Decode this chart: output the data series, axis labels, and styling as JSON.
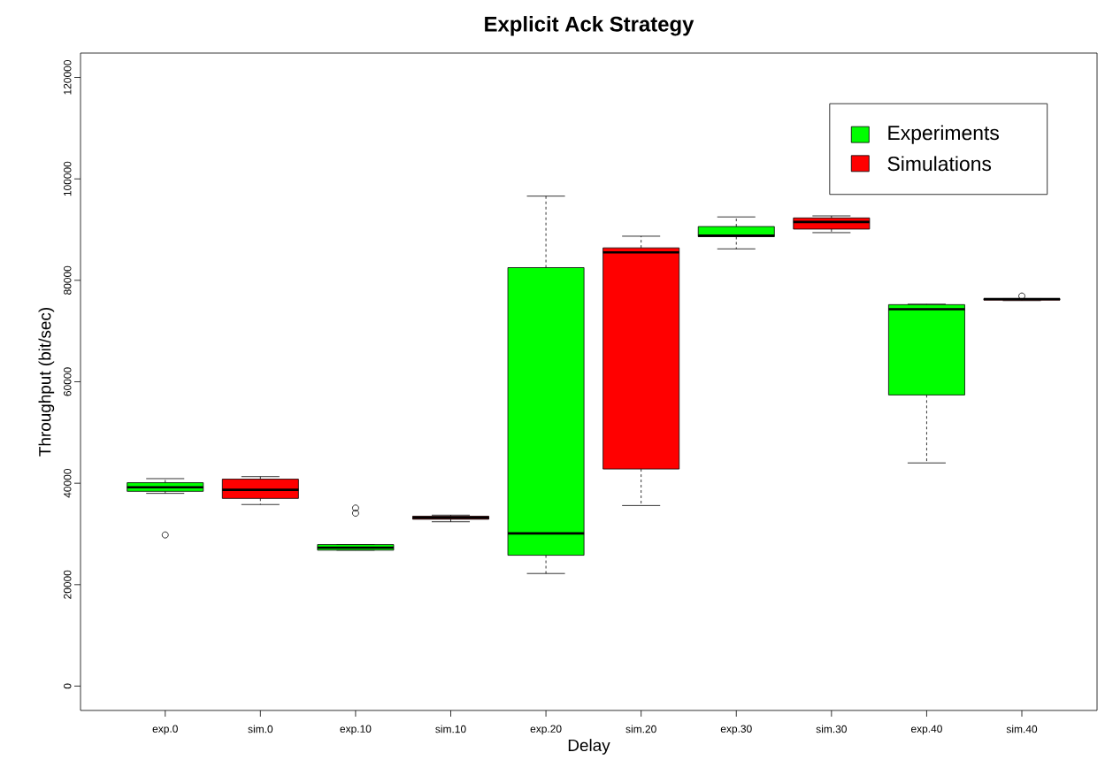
{
  "chart_data": {
    "type": "box",
    "title": "Explicit Ack Strategy",
    "xlabel": "Delay",
    "ylabel": "Throughput (bit/sec)",
    "categories": [
      "exp.0",
      "sim.0",
      "exp.10",
      "sim.10",
      "exp.20",
      "sim.20",
      "exp.30",
      "sim.30",
      "exp.40",
      "sim.40"
    ],
    "ylim": [
      -4800,
      124800
    ],
    "yticks": [
      0,
      20000,
      40000,
      60000,
      80000,
      100000,
      120000
    ],
    "grid": false,
    "legend": "top right",
    "series": [
      {
        "name": "Experiments",
        "color": "#00ff00",
        "boxes": [
          {
            "low": 38000,
            "q1": 38400,
            "median": 39200,
            "q3": 40100,
            "high": 40900,
            "outliers": [
              29800
            ]
          },
          null,
          {
            "low": 26800,
            "q1": 26800,
            "median": 27300,
            "q3": 27900,
            "high": 27900,
            "outliers": [
              34100,
              35100
            ]
          },
          null,
          {
            "low": 22200,
            "q1": 25800,
            "median": 30100,
            "q3": 82500,
            "high": 96600
          },
          null,
          {
            "low": 86200,
            "q1": 88600,
            "median": 88800,
            "q3": 90600,
            "high": 92500
          },
          null,
          {
            "low": 44000,
            "q1": 57400,
            "median": 74300,
            "q3": 75200,
            "high": 75300
          },
          null
        ]
      },
      {
        "name": "Simulations",
        "color": "#ff0000",
        "boxes": [
          null,
          {
            "low": 35800,
            "q1": 37000,
            "median": 38700,
            "q3": 40800,
            "high": 41300
          },
          null,
          {
            "low": 32400,
            "q1": 32900,
            "median": 33200,
            "q3": 33500,
            "high": 33700
          },
          null,
          {
            "low": 35600,
            "q1": 42800,
            "median": 85500,
            "q3": 86400,
            "high": 88700
          },
          null,
          {
            "low": 89400,
            "q1": 90100,
            "median": 91500,
            "q3": 92300,
            "high": 92700
          },
          null,
          {
            "low": 76000,
            "q1": 76100,
            "median": 76300,
            "q3": 76400,
            "high": 76400,
            "outliers": [
              76900
            ]
          }
        ]
      }
    ]
  }
}
